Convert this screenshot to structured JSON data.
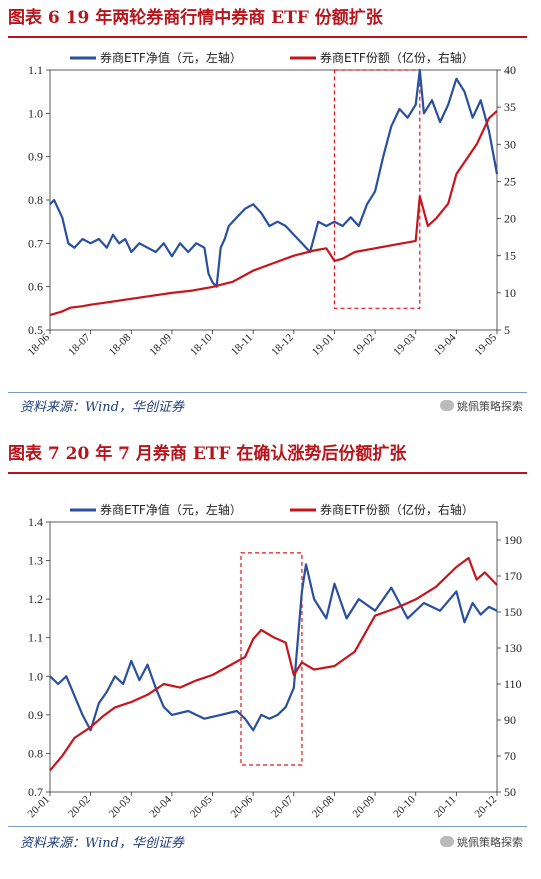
{
  "figures": [
    {
      "title": "图表 6   19 年两轮券商行情中券商 ETF 份额扩张",
      "source": "资料来源：Wind，华创证券",
      "watermark": "姚佩策略探索",
      "chart_data": {
        "type": "line",
        "dual_axis": true,
        "x_ticks": [
          "18-06",
          "18-07",
          "18-08",
          "18-09",
          "18-10",
          "18-11",
          "18-12",
          "19-01",
          "19-02",
          "19-03",
          "19-04",
          "19-05"
        ],
        "x_range": [
          0,
          11.0
        ],
        "left_axis": {
          "ylim": [
            0.5,
            1.1
          ],
          "ticks": [
            "0.5",
            "0.6",
            "0.7",
            "0.8",
            "0.9",
            "1.0",
            "1.1"
          ]
        },
        "right_axis": {
          "ylim": [
            5,
            40
          ],
          "ticks": [
            "5",
            "10",
            "15",
            "20",
            "25",
            "30",
            "35",
            "40"
          ]
        },
        "legend": [
          "券商ETF净值（元，左轴）",
          "券商ETF份额（亿份，右轴）"
        ],
        "series": [
          {
            "name": "券商ETF净值（元，左轴）",
            "axis": "left",
            "color": "#2a4f9e",
            "x": [
              0,
              0.1,
              0.2,
              0.3,
              0.45,
              0.6,
              0.8,
              1.0,
              1.2,
              1.4,
              1.55,
              1.7,
              1.85,
              2.0,
              2.2,
              2.4,
              2.6,
              2.8,
              3.0,
              3.2,
              3.4,
              3.6,
              3.8,
              3.9,
              4.0,
              4.1,
              4.2,
              4.3,
              4.4,
              4.6,
              4.8,
              5.0,
              5.2,
              5.4,
              5.6,
              5.8,
              6.0,
              6.2,
              6.4,
              6.6,
              6.8,
              7.0,
              7.2,
              7.4,
              7.6,
              7.8,
              8.0,
              8.2,
              8.4,
              8.6,
              8.8,
              9.0,
              9.1,
              9.2,
              9.4,
              9.6,
              9.8,
              10.0,
              10.2,
              10.4,
              10.6,
              10.8,
              11.0
            ],
            "y": [
              0.79,
              0.8,
              0.78,
              0.76,
              0.7,
              0.69,
              0.71,
              0.7,
              0.71,
              0.69,
              0.72,
              0.7,
              0.71,
              0.68,
              0.7,
              0.69,
              0.68,
              0.7,
              0.67,
              0.7,
              0.68,
              0.7,
              0.69,
              0.63,
              0.61,
              0.6,
              0.69,
              0.71,
              0.74,
              0.76,
              0.78,
              0.79,
              0.77,
              0.74,
              0.75,
              0.74,
              0.72,
              0.7,
              0.68,
              0.75,
              0.74,
              0.75,
              0.74,
              0.76,
              0.74,
              0.79,
              0.82,
              0.9,
              0.97,
              1.01,
              0.99,
              1.02,
              1.1,
              1.0,
              1.03,
              0.98,
              1.02,
              1.08,
              1.05,
              0.99,
              1.03,
              0.96,
              0.86
            ]
          },
          {
            "name": "券商ETF份额（亿份，右轴）",
            "axis": "right",
            "color": "#c8141c",
            "x": [
              0,
              0.3,
              0.5,
              0.8,
              1.0,
              1.5,
              2.0,
              2.5,
              3.0,
              3.5,
              4.0,
              4.5,
              5.0,
              5.5,
              6.0,
              6.5,
              6.8,
              7.0,
              7.2,
              7.5,
              8.0,
              8.5,
              9.0,
              9.1,
              9.3,
              9.5,
              9.8,
              10.0,
              10.5,
              10.8,
              11.0
            ],
            "y": [
              7,
              7.5,
              8,
              8.2,
              8.4,
              8.8,
              9.2,
              9.6,
              10.0,
              10.3,
              10.8,
              11.5,
              13.0,
              14.0,
              15.0,
              15.7,
              16.0,
              14.3,
              14.6,
              15.5,
              16.0,
              16.5,
              17.0,
              23.0,
              19.0,
              20.0,
              22.0,
              26.0,
              30.0,
              33.5,
              34.5
            ]
          }
        ],
        "highlight_box": {
          "x_range": [
            7.0,
            9.1
          ],
          "y_range_left": [
            0.55,
            1.1
          ]
        }
      }
    },
    {
      "title": "图表 7   20 年 7 月券商 ETF 在确认涨势后份额扩张",
      "source": "资料来源：Wind，华创证券",
      "watermark": "姚佩策略探索",
      "chart_data": {
        "type": "line",
        "dual_axis": true,
        "x_ticks": [
          "20-01",
          "20-02",
          "20-03",
          "20-04",
          "20-05",
          "20-06",
          "20-07",
          "20-08",
          "20-09",
          "20-10",
          "20-11",
          "20-12"
        ],
        "x_range": [
          0,
          11.0
        ],
        "left_axis": {
          "ylim": [
            0.7,
            1.4
          ],
          "ticks": [
            "0.7",
            "0.8",
            "0.9",
            "1.0",
            "1.1",
            "1.2",
            "1.3",
            "1.4"
          ]
        },
        "right_axis": {
          "ylim": [
            50,
            200
          ],
          "ticks": [
            "50",
            "70",
            "90",
            "110",
            "130",
            "150",
            "170",
            "190"
          ]
        },
        "legend": [
          "券商ETF净值（元，左轴）",
          "券商ETF份额（亿份，右轴）"
        ],
        "series": [
          {
            "name": "券商ETF净值（元，左轴）",
            "axis": "left",
            "color": "#2a4f9e",
            "x": [
              0,
              0.2,
              0.4,
              0.6,
              0.8,
              1.0,
              1.2,
              1.4,
              1.6,
              1.8,
              2.0,
              2.2,
              2.4,
              2.6,
              2.8,
              3.0,
              3.4,
              3.8,
              4.2,
              4.6,
              4.8,
              5.0,
              5.2,
              5.4,
              5.6,
              5.8,
              6.0,
              6.2,
              6.3,
              6.5,
              6.8,
              7.0,
              7.3,
              7.6,
              8.0,
              8.4,
              8.8,
              9.2,
              9.6,
              10.0,
              10.2,
              10.4,
              10.6,
              10.8,
              11.0
            ],
            "y": [
              1.0,
              0.98,
              1.0,
              0.95,
              0.9,
              0.86,
              0.93,
              0.96,
              1.0,
              0.98,
              1.04,
              0.99,
              1.03,
              0.97,
              0.92,
              0.9,
              0.91,
              0.89,
              0.9,
              0.91,
              0.89,
              0.86,
              0.9,
              0.89,
              0.9,
              0.92,
              0.97,
              1.22,
              1.29,
              1.2,
              1.15,
              1.24,
              1.15,
              1.2,
              1.17,
              1.23,
              1.15,
              1.19,
              1.17,
              1.22,
              1.14,
              1.19,
              1.16,
              1.18,
              1.17
            ]
          },
          {
            "name": "券商ETF份额（亿份，右轴）",
            "axis": "right",
            "color": "#c8141c",
            "x": [
              0,
              0.3,
              0.6,
              1.0,
              1.3,
              1.6,
              2.0,
              2.4,
              2.8,
              3.2,
              3.6,
              4.0,
              4.4,
              4.8,
              5.0,
              5.2,
              5.5,
              5.8,
              6.0,
              6.2,
              6.5,
              7.0,
              7.5,
              8.0,
              8.5,
              9.0,
              9.5,
              10.0,
              10.3,
              10.5,
              10.7,
              11.0
            ],
            "y": [
              62,
              70,
              80,
              86,
              92,
              97,
              100,
              104,
              110,
              108,
              112,
              115,
              120,
              125,
              135,
              140,
              136,
              133,
              115,
              122,
              118,
              120,
              128,
              148,
              152,
              157,
              164,
              175,
              180,
              168,
              172,
              165
            ]
          }
        ],
        "highlight_box": {
          "x_range": [
            4.7,
            6.2
          ],
          "y_range_left": [
            0.77,
            1.32
          ]
        }
      }
    }
  ]
}
